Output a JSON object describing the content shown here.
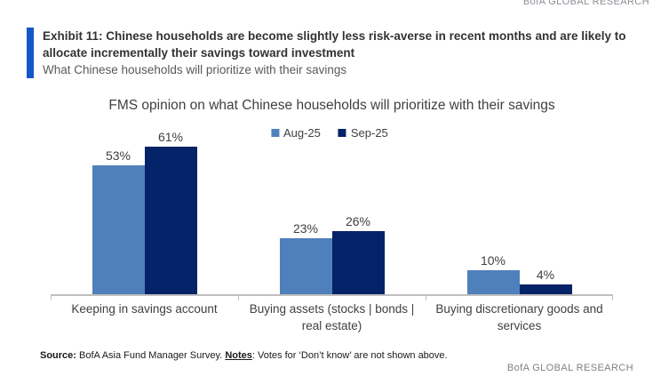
{
  "brand": {
    "top": "BofA GLOBAL RESEARCH",
    "bottom": "BofA GLOBAL RESEARCH"
  },
  "exhibit": {
    "title": "Exhibit 11: Chinese households are become slightly less risk-averse in recent months and are likely to allocate incrementally their savings toward investment",
    "subtitle": "What Chinese households will prioritize with their savings"
  },
  "chart_data": {
    "type": "bar",
    "title": "FMS opinion on what Chinese households will prioritize with their savings",
    "categories": [
      "Keeping in savings account",
      "Buying assets (stocks | bonds | real estate)",
      "Buying discretionary goods and services"
    ],
    "series": [
      {
        "name": "Aug-25",
        "color": "#4E81BC",
        "values": [
          53,
          23,
          10
        ]
      },
      {
        "name": "Sep-25",
        "color": "#042267",
        "values": [
          61,
          26,
          4
        ]
      }
    ],
    "value_suffix": "%",
    "ylim": [
      0,
      70
    ],
    "grid": false,
    "legend_position": "top-center",
    "data_labels": true,
    "axis_color": "#BFBFBF"
  },
  "source": {
    "source_label": "Source:",
    "source_text": " BofA Asia Fund Manager Survey. ",
    "notes_label": "Notes",
    "notes_text": ": Votes for ‘Don’t know’ are not shown above."
  },
  "colors": {
    "accent_bar": "#1457C8"
  }
}
